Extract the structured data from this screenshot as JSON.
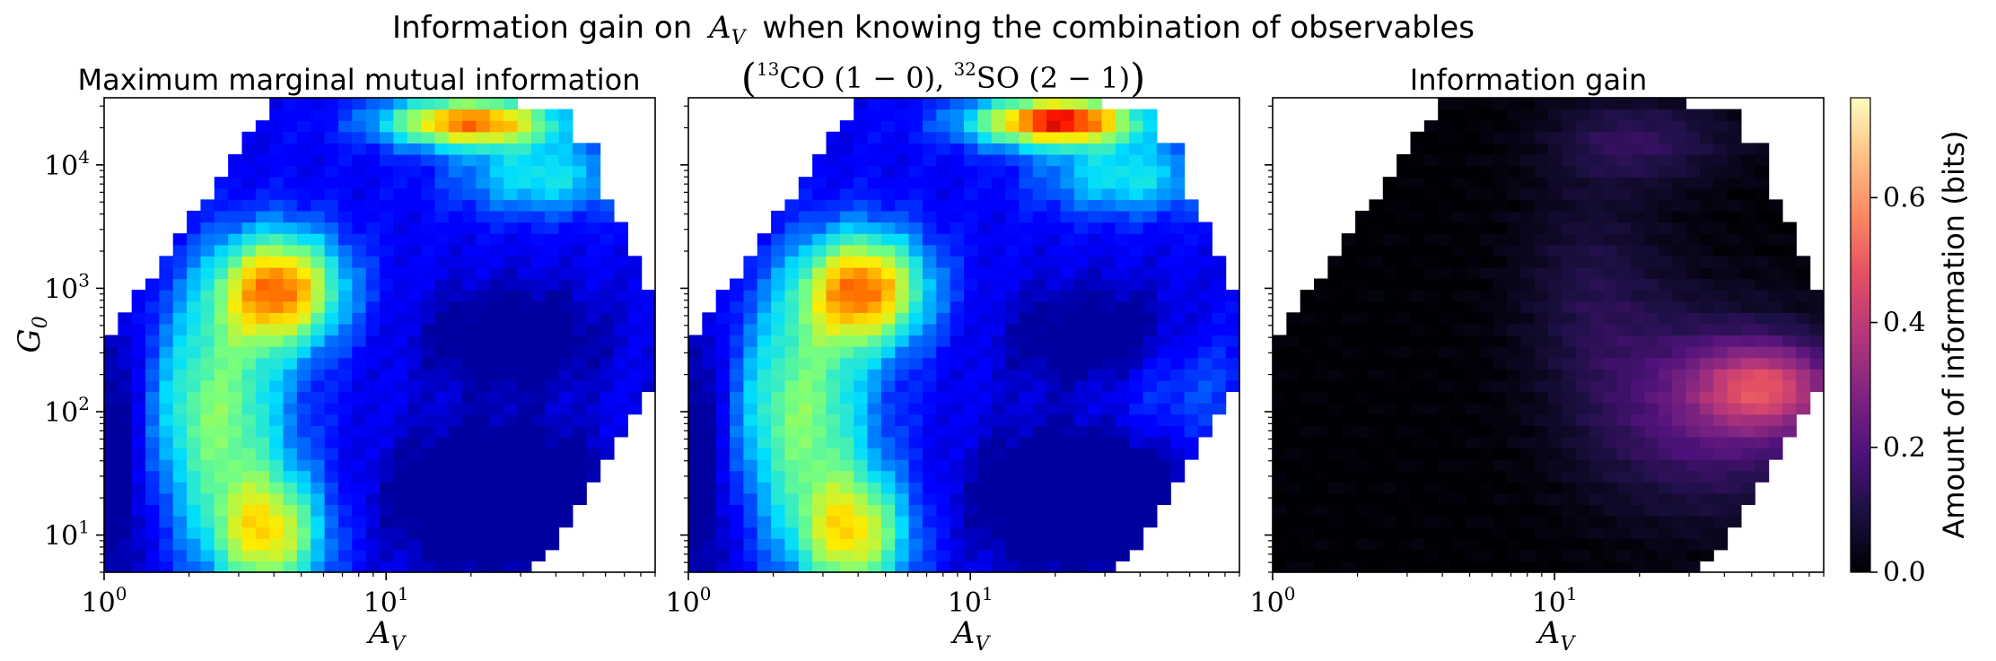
{
  "figure": {
    "suptitle_prefix": "Information gain on",
    "suptitle_var": "A",
    "suptitle_sub": "V",
    "suptitle_suffix": "when knowing the combination of observables"
  },
  "colorbar": {
    "label": "Amount of information (bits)",
    "ticks": [
      "0.0",
      "0.2",
      "0.4",
      "0.6"
    ],
    "tick_values": [
      0.0,
      0.2,
      0.4,
      0.6
    ],
    "range": [
      0.0,
      0.76
    ],
    "colormap": "magma"
  },
  "axes_labels": {
    "y": "G",
    "y_sub": "0",
    "x": "A",
    "x_sub": "V",
    "x_ticks": [
      "10",
      "10"
    ],
    "x_tick_exps": [
      "0",
      "1"
    ],
    "y_ticks": [
      "10",
      "10",
      "10",
      "10"
    ],
    "y_tick_exps": [
      "1",
      "2",
      "3",
      "4"
    ]
  },
  "panels": [
    {
      "title": "Maximum marginal mutual information",
      "colormap": "jet"
    },
    {
      "title_parts": [
        "13",
        "CO (1 − 0), ",
        "32",
        "SO (2 − 1)"
      ],
      "colormap": "jet"
    },
    {
      "title": "Information gain",
      "colormap": "magma"
    }
  ],
  "chart_data": [
    {
      "type": "heatmap",
      "title": "Maximum marginal mutual information",
      "xlabel": "A_V",
      "ylabel": "G_0",
      "xscale": "log",
      "yscale": "log",
      "xlim": [
        1,
        90
      ],
      "ylim": [
        5,
        35000
      ],
      "value_range": [
        0.0,
        0.76
      ],
      "colormap": "jet",
      "description_of_values": "information in bits over log(A_V) x log(G_0) grid",
      "grid": {
        "nx": 40,
        "ny": 42
      },
      "features": [
        {
          "name": "peak-mid",
          "A_V": 4.2,
          "G_0": 1000,
          "value": 0.58
        },
        {
          "name": "peak-low",
          "A_V": 3.8,
          "G_0": 10,
          "value": 0.48
        },
        {
          "name": "peak-top",
          "A_V": 20,
          "G_0": 25000,
          "value": 0.62
        },
        {
          "name": "trough-right",
          "A_V": 25,
          "G_0": 30,
          "value": 0.08
        },
        {
          "name": "trough-left",
          "A_V": 1.2,
          "G_0": 50,
          "value": 0.06
        }
      ]
    },
    {
      "type": "heatmap",
      "title": "(13CO (1 − 0), 32SO (2 − 1))",
      "xlabel": "A_V",
      "ylabel": "G_0",
      "xscale": "log",
      "yscale": "log",
      "xlim": [
        1,
        90
      ],
      "ylim": [
        5,
        35000
      ],
      "value_range": [
        0.0,
        0.76
      ],
      "colormap": "jet",
      "grid": {
        "nx": 40,
        "ny": 42
      },
      "features": [
        {
          "name": "peak-mid",
          "A_V": 4.2,
          "G_0": 1000,
          "value": 0.6
        },
        {
          "name": "peak-low",
          "A_V": 3.8,
          "G_0": 10,
          "value": 0.48
        },
        {
          "name": "peak-top",
          "A_V": 22,
          "G_0": 28000,
          "value": 0.7
        },
        {
          "name": "boost-right",
          "A_V": 50,
          "G_0": 150,
          "value": 0.35
        },
        {
          "name": "trough-right",
          "A_V": 25,
          "G_0": 25,
          "value": 0.1
        }
      ]
    },
    {
      "type": "heatmap",
      "title": "Information gain",
      "xlabel": "A_V",
      "xscale": "log",
      "yscale": "log",
      "xlim": [
        1,
        90
      ],
      "ylim": [
        5,
        35000
      ],
      "value_range": [
        0.0,
        0.76
      ],
      "colormap": "magma",
      "grid": {
        "nx": 40,
        "ny": 42
      },
      "features": [
        {
          "name": "max-gain",
          "A_V": 55,
          "G_0": 150,
          "value": 0.42
        },
        {
          "name": "top-band",
          "A_V": 18,
          "G_0": 15000,
          "value": 0.18
        },
        {
          "name": "low-gain",
          "A_V": 2,
          "G_0": 100,
          "value": 0.0
        }
      ]
    }
  ]
}
